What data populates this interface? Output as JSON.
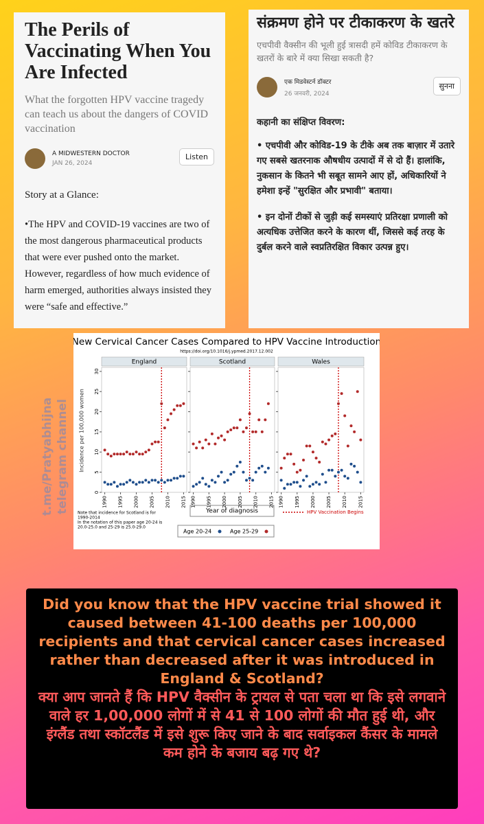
{
  "left_card": {
    "title": "The Perils of Vaccinating When You Are Infected",
    "subtitle": "What the forgotten HPV vaccine tragedy can teach us about the dangers of COVID vaccination",
    "author": "A MIDWESTERN DOCTOR",
    "date": "JAN 26, 2024",
    "listen": "Listen",
    "heading": "Story at a Glance:",
    "paragraph": "•The HPV and COVID-19 vaccines are two of the most dangerous pharmaceutical products that were ever pushed onto the market. However, regardless of how much evidence of harm emerged, authorities always insisted they were “safe and effective.”"
  },
  "right_card": {
    "title": "संक्रमण होने पर टीकाकरण के खतरे",
    "subtitle": "एचपीवी वैक्सीन की भूली हुई त्रासदी हमें कोविड टीकाकरण के खतरों के बारे में क्या सिखा सकती है?",
    "author": "एक मिडवेस्टर्न डॉक्टर",
    "date": "26 जनवरी, 2024",
    "listen": "सुनना",
    "heading": "कहानी का संक्षिप्त विवरण:",
    "paragraphs": [
      "• एचपीवी और कोविड-19 के टीके अब तक बाज़ार में उतारे गए सबसे खतरनाक औषधीय उत्पादों में से दो हैं। हालांकि, नुकसान के कितने भी सबूत सामने आए हों, अधिकारियों ने हमेशा इन्हें \"सुरक्षित और प्रभावी\" बताया।",
      "• इन दोनों टीकों से जुड़ी कई समस्याएं प्रतिरक्षा प्रणाली को अत्यधिक उत्तेजित करने के कारण थीं, जिससे कई तरह के दुर्बल करने वाले स्वप्रतिरक्षित विकार उत्पन्न हुए।"
    ]
  },
  "chart_frame": {
    "title": "New Cervical Cancer Cases Compared to HPV Vaccine Introduction",
    "source": "https://doi.org/10.1016/j.ypmed.2017.12.002",
    "y_label": "Incidence per 100,000 women",
    "x_label": "Year of diagnosis",
    "notes": [
      "Note that incidence for Scotland is for",
      "1990-2014",
      "In the notation of this paper age 20-24 is",
      "20.0-25.0 and 25-29 is 25.0-29.0"
    ],
    "vline_label": "HPV Vaccination Begins"
  },
  "chart_data": [
    {
      "type": "scatter",
      "title": "England",
      "vline": 2008,
      "xlim": [
        1989,
        2016
      ],
      "xticks": [
        1990,
        1995,
        2000,
        2005,
        2010,
        2015
      ],
      "ylim": [
        0,
        31
      ],
      "yticks": [
        0,
        5,
        10,
        15,
        20,
        25,
        30
      ],
      "x": [
        1990,
        1991,
        1992,
        1993,
        1994,
        1995,
        1996,
        1997,
        1998,
        1999,
        2000,
        2001,
        2002,
        2003,
        2004,
        2005,
        2006,
        2007,
        2008,
        2009,
        2010,
        2011,
        2012,
        2013,
        2014,
        2015
      ],
      "series": [
        {
          "name": "Age 20-24",
          "color": "#1f4e8c",
          "values": [
            2.5,
            2,
            2,
            2.5,
            1.5,
            2,
            2,
            2.5,
            3,
            2.5,
            2,
            2.5,
            2.5,
            3,
            2.5,
            3,
            3,
            2.5,
            3,
            2.5,
            3,
            3,
            3.5,
            3.5,
            4,
            4
          ]
        },
        {
          "name": "Age 25-29",
          "color": "#b22a2a",
          "values": [
            10.5,
            9.5,
            9,
            9.5,
            9.5,
            9.5,
            9.5,
            10,
            9.5,
            9.5,
            10,
            9.5,
            9.5,
            10,
            10.5,
            12,
            12.5,
            12.5,
            22,
            16,
            18,
            19.5,
            20.5,
            21.5,
            21.5,
            22
          ]
        }
      ]
    },
    {
      "type": "scatter",
      "title": "Scotland",
      "vline": 2008,
      "xlim": [
        1989,
        2016
      ],
      "xticks": [
        1990,
        1995,
        2000,
        2005,
        2010,
        2015
      ],
      "ylim": [
        0,
        31
      ],
      "yticks": [
        0,
        5,
        10,
        15,
        20,
        25,
        30
      ],
      "x": [
        1990,
        1991,
        1992,
        1993,
        1994,
        1995,
        1996,
        1997,
        1998,
        1999,
        2000,
        2001,
        2002,
        2003,
        2004,
        2005,
        2006,
        2007,
        2008,
        2009,
        2010,
        2011,
        2012,
        2013,
        2014,
        2015
      ],
      "series": [
        {
          "name": "Age 20-24",
          "color": "#1f4e8c",
          "values": [
            1.5,
            2,
            2.5,
            3.5,
            2,
            1.5,
            3,
            2.5,
            4,
            5,
            2.5,
            3,
            4.5,
            5,
            6.5,
            7.5,
            5,
            3,
            3.5,
            3,
            5,
            6,
            6.5,
            5,
            6,
            null
          ]
        },
        {
          "name": "Age 25-29",
          "color": "#b22a2a",
          "values": [
            12,
            11,
            12.5,
            11,
            13,
            12,
            14.5,
            12,
            13.5,
            14,
            13,
            15,
            15.5,
            16,
            16,
            18,
            15,
            16,
            19.5,
            15,
            15,
            18,
            15,
            18,
            22,
            null
          ]
        }
      ]
    },
    {
      "type": "scatter",
      "title": "Wales",
      "vline": 2008,
      "xlim": [
        1989,
        2016
      ],
      "xticks": [
        1990,
        1995,
        2000,
        2005,
        2010,
        2015
      ],
      "ylim": [
        0,
        31
      ],
      "yticks": [
        0,
        5,
        10,
        15,
        20,
        25,
        30
      ],
      "x": [
        1990,
        1991,
        1992,
        1993,
        1994,
        1995,
        1996,
        1997,
        1998,
        1999,
        2000,
        2001,
        2002,
        2003,
        2004,
        2005,
        2006,
        2007,
        2008,
        2009,
        2010,
        2011,
        2012,
        2013,
        2014,
        2015
      ],
      "series": [
        {
          "name": "Age 20-24",
          "color": "#1f4e8c",
          "values": [
            3,
            1,
            2,
            2,
            2.5,
            2.5,
            1.5,
            3,
            4,
            1.5,
            2,
            2.5,
            2,
            4.5,
            2.5,
            5.5,
            5.5,
            4,
            5,
            5.5,
            4,
            3.5,
            7,
            6.5,
            5,
            2.5
          ]
        },
        {
          "name": "Age 25-29",
          "color": "#b22a2a",
          "values": [
            6,
            8.5,
            9.5,
            9.5,
            7,
            5,
            5.5,
            8,
            11.5,
            11.5,
            10,
            8.5,
            7.5,
            12.5,
            12,
            13,
            14,
            14.5,
            22,
            24.5,
            19,
            11.5,
            16.5,
            15,
            25,
            13
          ]
        }
      ]
    }
  ],
  "watermark": [
    "t.me/Pratyabhijna",
    "telegram channel"
  ],
  "caption": {
    "english": "Did you know that the HPV vaccine trial showed it caused between 41-100 deaths per 100,000 recipients and that cervical cancer cases increased rather than decreased after it was introduced in England & Scotland?",
    "hindi": "क्या आप जानते हैं कि HPV वैक्सीन के ट्रायल से पता चला था कि इसे लगवाने वाले हर 1,00,000 लोगों में से 41 से 100 लोगों की मौत हुई थी, और इंग्लैंड तथा स्कॉटलैंड में इसे शुरू किए जाने के बाद सर्वाइकल कैंसर के मामले कम होने के बजाय बढ़ गए थे?"
  }
}
